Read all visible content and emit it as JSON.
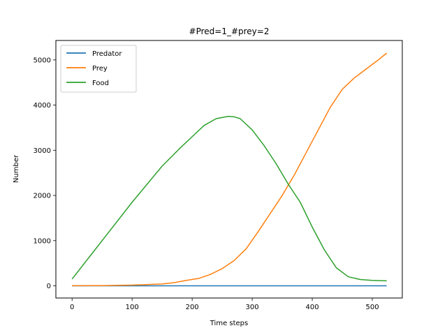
{
  "chart_data": {
    "type": "line",
    "title": "#Pred=1_#prey=2",
    "xlabel": "Time steps",
    "ylabel": "Number",
    "xlim": [
      -27,
      550
    ],
    "ylim": [
      -270,
      5430
    ],
    "xticks": [
      0,
      100,
      200,
      300,
      400,
      500
    ],
    "yticks": [
      0,
      1000,
      2000,
      3000,
      4000,
      5000
    ],
    "grid": false,
    "legend_position": "top-left",
    "series": [
      {
        "name": "Predator",
        "color": "#1f77b4",
        "x": [
          0,
          100,
          200,
          300,
          400,
          524
        ],
        "y": [
          1,
          1,
          1,
          1,
          1,
          1
        ]
      },
      {
        "name": "Prey",
        "color": "#ff7f0e",
        "x": [
          0,
          50,
          100,
          150,
          170,
          190,
          210,
          230,
          250,
          270,
          290,
          310,
          330,
          350,
          370,
          390,
          410,
          430,
          440,
          450,
          470,
          490,
          510,
          524
        ],
        "y": [
          2,
          5,
          15,
          40,
          70,
          120,
          160,
          250,
          380,
          560,
          820,
          1200,
          1600,
          2000,
          2450,
          2950,
          3450,
          3950,
          4150,
          4350,
          4600,
          4800,
          5000,
          5150
        ]
      },
      {
        "name": "Food",
        "color": "#2ca02c",
        "x": [
          0,
          50,
          100,
          150,
          180,
          200,
          220,
          240,
          260,
          270,
          280,
          300,
          320,
          340,
          360,
          380,
          400,
          420,
          440,
          460,
          480,
          500,
          524
        ],
        "y": [
          150,
          1000,
          1850,
          2650,
          3050,
          3300,
          3550,
          3700,
          3750,
          3740,
          3700,
          3450,
          3100,
          2700,
          2250,
          1850,
          1300,
          800,
          400,
          200,
          140,
          120,
          110
        ]
      }
    ]
  }
}
